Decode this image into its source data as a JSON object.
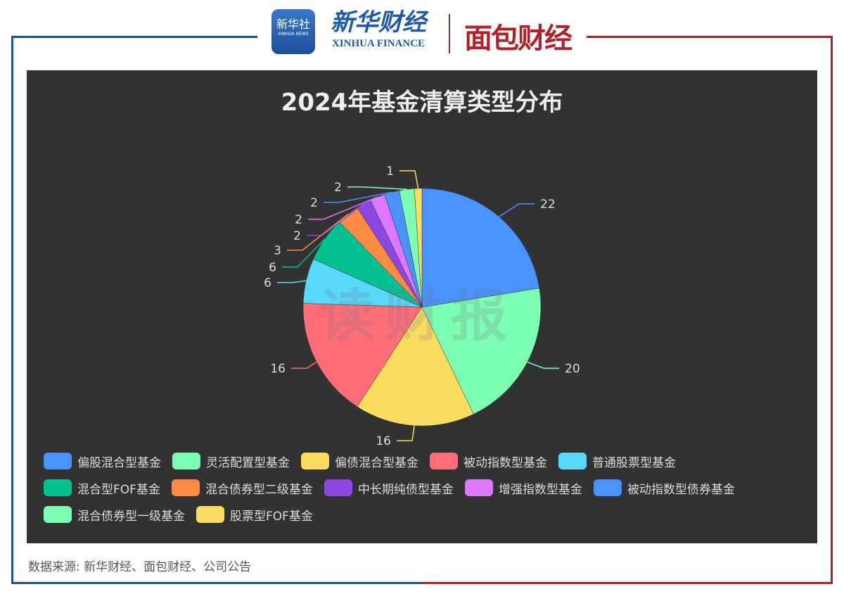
{
  "header": {
    "logo1_text": "新华社",
    "logo1_sub": "XINHUA NEWS",
    "logo2_text": "新华财经",
    "logo2_sub": "XINHUA FINANCE",
    "logo3_text": "面包财经"
  },
  "watermark": "读财报",
  "source": "数据来源: 新华财经、面包财经、公司公告",
  "chart_data": {
    "type": "pie",
    "title": "2024年基金清算类型分布",
    "legend_position": "bottom",
    "categories": [
      "偏股混合型基金",
      "灵活配置型基金",
      "偏债混合型基金",
      "被动指数型基金",
      "普通股票型基金",
      "混合型FOF基金",
      "混合债券型二级基金",
      "中长期纯债型基金",
      "增强指数型基金",
      "被动指数型债券基金",
      "混合债券型一级基金",
      "股票型FOF基金"
    ],
    "values": [
      22,
      20,
      16,
      16,
      6,
      6,
      3,
      2,
      2,
      2,
      2,
      1
    ],
    "colors": [
      "#4992ff",
      "#7cffb2",
      "#fddd60",
      "#ff6e76",
      "#58d9f9",
      "#05c091",
      "#ff8a45",
      "#8d48e3",
      "#dd79ff",
      "#4992ff",
      "#7cffb2",
      "#fddd60"
    ]
  }
}
